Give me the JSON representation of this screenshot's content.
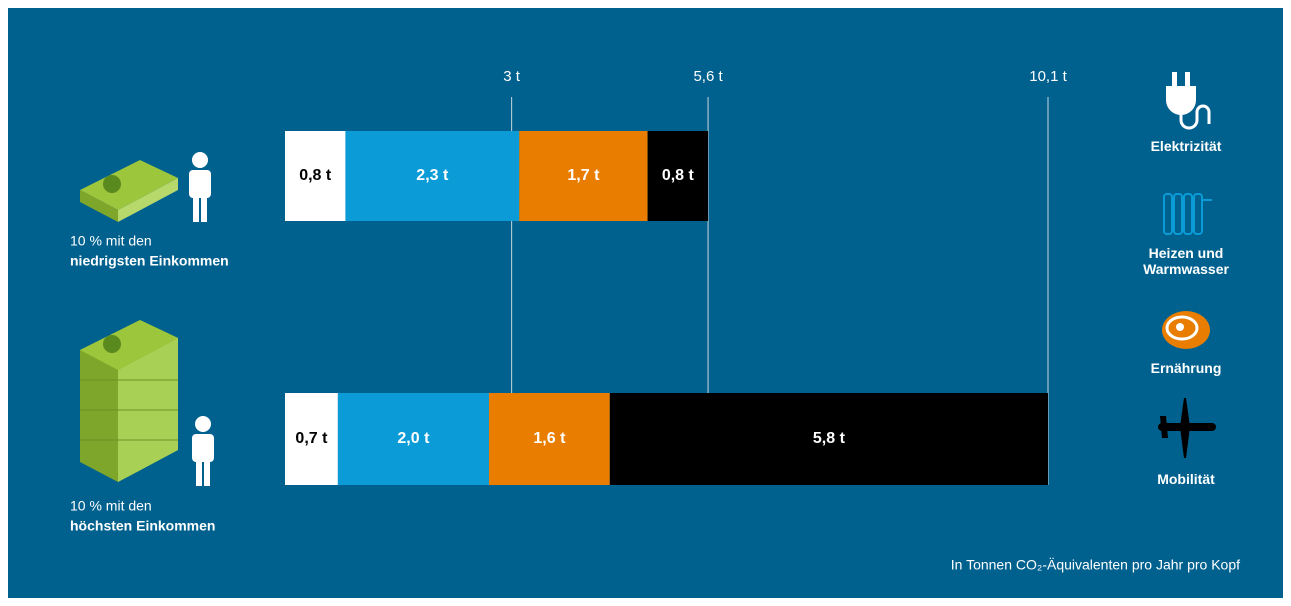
{
  "chart_data": {
    "type": "stacked-bar",
    "orientation": "horizontal",
    "categories": [
      [
        "10 % mit den",
        "niedrigsten Einkommen"
      ],
      [
        "10 % mit den",
        "höchsten Einkommen"
      ]
    ],
    "series": [
      {
        "name": "Elektrizität",
        "color": "#ffffff",
        "label_color": "#000000",
        "values": [
          0.8,
          0.7
        ],
        "value_labels": [
          "0,8 t",
          "0,7 t"
        ]
      },
      {
        "name": "Heizen und Warmwasser",
        "color": "#0b9bd7",
        "label_color": "#ffffff",
        "values": [
          2.3,
          2.0
        ],
        "value_labels": [
          "2,3 t",
          "2,0 t"
        ]
      },
      {
        "name": "Ernährung",
        "color": "#e87d00",
        "label_color": "#ffffff",
        "values": [
          1.7,
          1.6
        ],
        "value_labels": [
          "1,7 t",
          "1,6 t"
        ]
      },
      {
        "name": "Mobilität",
        "color": "#000000",
        "label_color": "#ffffff",
        "values": [
          0.8,
          5.8
        ],
        "value_labels": [
          "0,8 t",
          "5,8 t"
        ]
      }
    ],
    "xlim": [
      0,
      10.1
    ],
    "xticks": [
      {
        "value": 3,
        "label": "3 t"
      },
      {
        "value": 5.6,
        "label": "5,6 t"
      },
      {
        "value": 10.1,
        "label": "10,1 t"
      }
    ],
    "note": "In Tonnen CO₂-Äquivalenten pro Jahr pro Kopf"
  }
}
